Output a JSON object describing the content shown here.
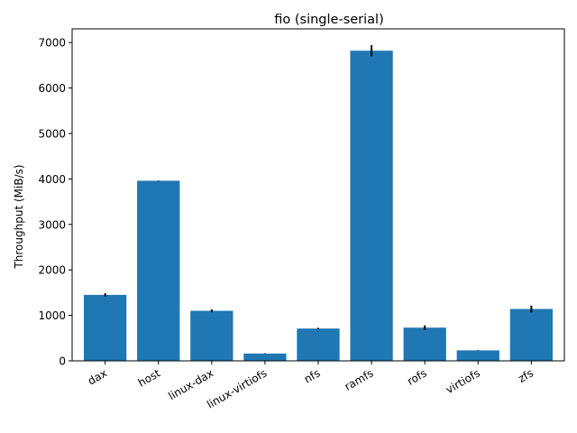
{
  "chart_data": {
    "type": "bar",
    "title": "fio (single-serial)",
    "xlabel": "",
    "ylabel": "Throughput (MiB/s)",
    "categories": [
      "dax",
      "host",
      "linux-dax",
      "linux-virtiofs",
      "nfs",
      "ramfs",
      "rofs",
      "virtiofs",
      "zfs"
    ],
    "values": [
      1450,
      3960,
      1100,
      160,
      710,
      6820,
      730,
      230,
      1140
    ],
    "errors": [
      35,
      5,
      30,
      5,
      15,
      120,
      50,
      5,
      75
    ],
    "ylim": [
      0,
      7300
    ],
    "yticks": [
      0,
      1000,
      2000,
      3000,
      4000,
      5000,
      6000,
      7000
    ],
    "ytick_labels": [
      "0",
      "1000",
      "2000",
      "3000",
      "4000",
      "5000",
      "6000",
      "7000"
    ],
    "grid": false,
    "colors": {
      "bar": "#1f77b4",
      "error": "#000000",
      "axis": "#000000"
    }
  }
}
